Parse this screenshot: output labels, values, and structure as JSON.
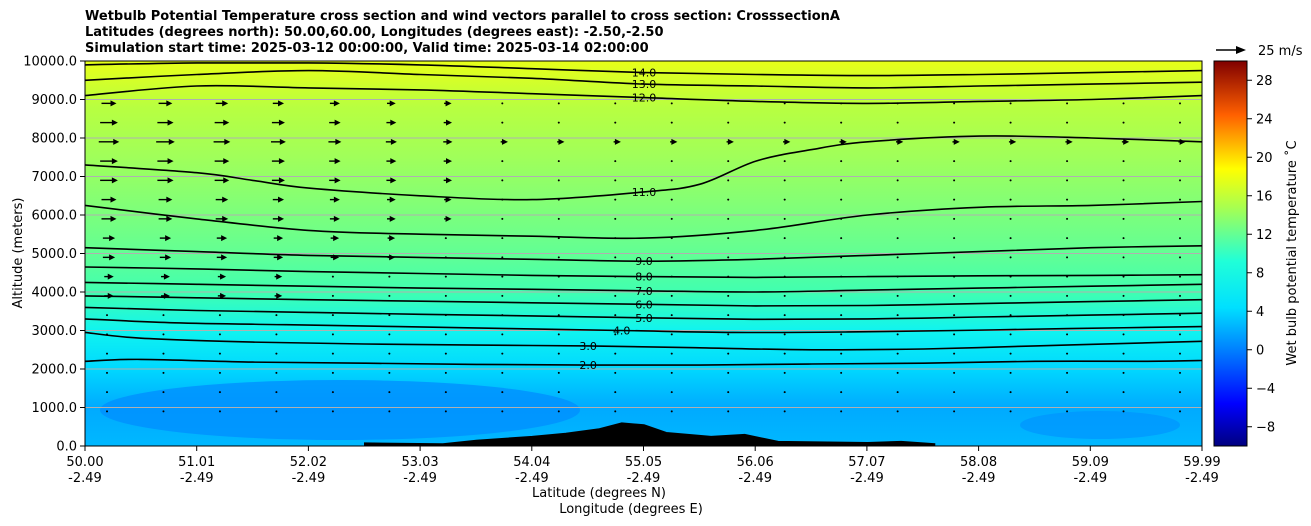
{
  "chart_data": {
    "type": "heatmap",
    "title_lines": [
      "Wetbulb Potential Temperature cross section and wind vectors parallel to cross section: CrosssectionA",
      "Latitudes (degrees north): 50.00,60.00, Longitudes (degrees east): -2.50,-2.50",
      "Simulation start time: 2025-03-12 00:00:00, Valid time: 2025-03-14 02:00:00"
    ],
    "ylabel": "Altitude (meters)",
    "xlabel_lat": "Latitude (degrees N)",
    "xlabel_lon": "Longitude (degrees E)",
    "ylim": [
      0,
      10000
    ],
    "xlim": [
      50.0,
      59.99
    ],
    "y_ticks": [
      "0.0",
      "1000.0",
      "2000.0",
      "3000.0",
      "4000.0",
      "5000.0",
      "6000.0",
      "7000.0",
      "8000.0",
      "9000.0",
      "10000.0"
    ],
    "x_ticks_lat": [
      "50.00",
      "51.01",
      "52.02",
      "53.03",
      "54.04",
      "55.05",
      "56.06",
      "57.07",
      "58.08",
      "59.09",
      "59.99"
    ],
    "x_ticks_lon": [
      "-2.49",
      "-2.49",
      "-2.49",
      "-2.49",
      "-2.49",
      "-2.49",
      "-2.49",
      "-2.49",
      "-2.49",
      "-2.49",
      "-2.49"
    ],
    "colorbar": {
      "label": "Wet bulb potential temperature ˚C",
      "range": [
        -10,
        30
      ],
      "ticks": [
        "−8",
        "−4",
        "0",
        "4",
        "8",
        "12",
        "16",
        "20",
        "24",
        "28"
      ]
    },
    "quiver_key_label": "25 m/s",
    "contours": [
      {
        "level": 2.0,
        "label": "2.0",
        "points": [
          [
            50.0,
            2200
          ],
          [
            50.5,
            2250
          ],
          [
            51.5,
            2180
          ],
          [
            52.5,
            2150
          ],
          [
            53.5,
            2120
          ],
          [
            54.5,
            2100
          ],
          [
            55.5,
            2100
          ],
          [
            56.5,
            2130
          ],
          [
            57.5,
            2150
          ],
          [
            58.5,
            2200
          ],
          [
            59.5,
            2200
          ],
          [
            59.99,
            2220
          ]
        ]
      },
      {
        "level": 3.0,
        "label": "3.0",
        "points": [
          [
            50.0,
            2950
          ],
          [
            50.5,
            2800
          ],
          [
            51.5,
            2700
          ],
          [
            52.5,
            2650
          ],
          [
            53.5,
            2620
          ],
          [
            54.5,
            2600
          ],
          [
            55.5,
            2550
          ],
          [
            56.5,
            2500
          ],
          [
            57.5,
            2520
          ],
          [
            58.5,
            2600
          ],
          [
            59.5,
            2680
          ],
          [
            59.99,
            2720
          ]
        ]
      },
      {
        "level": 4.0,
        "label": "4.0",
        "points": [
          [
            50.0,
            3300
          ],
          [
            50.8,
            3200
          ],
          [
            51.8,
            3150
          ],
          [
            52.8,
            3100
          ],
          [
            53.8,
            3050
          ],
          [
            54.8,
            3000
          ],
          [
            55.8,
            2950
          ],
          [
            56.8,
            2960
          ],
          [
            57.8,
            3000
          ],
          [
            58.8,
            3050
          ],
          [
            59.99,
            3100
          ]
        ]
      },
      {
        "level": 5.0,
        "label": "5.0",
        "points": [
          [
            50.0,
            3600
          ],
          [
            51.0,
            3520
          ],
          [
            52.0,
            3470
          ],
          [
            53.0,
            3420
          ],
          [
            54.0,
            3380
          ],
          [
            55.0,
            3330
          ],
          [
            56.0,
            3290
          ],
          [
            57.0,
            3300
          ],
          [
            58.0,
            3350
          ],
          [
            59.0,
            3400
          ],
          [
            59.99,
            3450
          ]
        ]
      },
      {
        "level": 6.0,
        "label": "6.0",
        "points": [
          [
            50.0,
            3900
          ],
          [
            51.0,
            3850
          ],
          [
            52.0,
            3800
          ],
          [
            53.0,
            3760
          ],
          [
            54.0,
            3720
          ],
          [
            55.0,
            3680
          ],
          [
            56.0,
            3640
          ],
          [
            57.0,
            3650
          ],
          [
            58.0,
            3700
          ],
          [
            59.0,
            3750
          ],
          [
            59.99,
            3800
          ]
        ]
      },
      {
        "level": 7.0,
        "label": "7.0",
        "points": [
          [
            50.0,
            4250
          ],
          [
            51.0,
            4200
          ],
          [
            52.0,
            4150
          ],
          [
            53.0,
            4100
          ],
          [
            54.0,
            4070
          ],
          [
            55.0,
            4030
          ],
          [
            56.0,
            4000
          ],
          [
            57.0,
            4050
          ],
          [
            58.0,
            4100
          ],
          [
            59.0,
            4150
          ],
          [
            59.99,
            4200
          ]
        ]
      },
      {
        "level": 8.0,
        "label": "8.0",
        "points": [
          [
            50.0,
            4650
          ],
          [
            51.0,
            4600
          ],
          [
            52.0,
            4530
          ],
          [
            53.0,
            4480
          ],
          [
            54.0,
            4430
          ],
          [
            55.0,
            4400
          ],
          [
            56.0,
            4380
          ],
          [
            57.0,
            4400
          ],
          [
            58.0,
            4420
          ],
          [
            59.0,
            4430
          ],
          [
            59.99,
            4450
          ]
        ]
      },
      {
        "level": 9.0,
        "label": "9.0",
        "points": [
          [
            50.0,
            5150
          ],
          [
            51.0,
            5050
          ],
          [
            52.0,
            4950
          ],
          [
            53.0,
            4900
          ],
          [
            54.0,
            4850
          ],
          [
            55.0,
            4800
          ],
          [
            56.0,
            4850
          ],
          [
            57.0,
            4950
          ],
          [
            58.0,
            5050
          ],
          [
            59.0,
            5150
          ],
          [
            59.99,
            5200
          ]
        ]
      },
      {
        "level": 10.0,
        "label": "",
        "points": [
          [
            50.0,
            6250
          ],
          [
            51.0,
            5900
          ],
          [
            52.0,
            5600
          ],
          [
            53.0,
            5500
          ],
          [
            54.0,
            5450
          ],
          [
            55.0,
            5400
          ],
          [
            56.0,
            5600
          ],
          [
            57.0,
            6000
          ],
          [
            58.0,
            6200
          ],
          [
            59.0,
            6250
          ],
          [
            59.99,
            6350
          ]
        ]
      },
      {
        "level": 11.0,
        "label": "11.0",
        "points": [
          [
            50.0,
            7300
          ],
          [
            51.0,
            7100
          ],
          [
            51.5,
            6900
          ],
          [
            52.0,
            6700
          ],
          [
            53.0,
            6500
          ],
          [
            54.0,
            6400
          ],
          [
            55.0,
            6600
          ],
          [
            55.5,
            6800
          ],
          [
            56.0,
            7400
          ],
          [
            56.5,
            7700
          ],
          [
            57.0,
            7900
          ],
          [
            58.0,
            8050
          ],
          [
            59.0,
            8000
          ],
          [
            59.99,
            7900
          ]
        ]
      },
      {
        "level": 12.0,
        "label": "12.0",
        "points": [
          [
            50.0,
            9100
          ],
          [
            51.0,
            9350
          ],
          [
            52.0,
            9300
          ],
          [
            53.0,
            9250
          ],
          [
            54.0,
            9150
          ],
          [
            55.0,
            9050
          ],
          [
            56.0,
            8950
          ],
          [
            57.0,
            8900
          ],
          [
            58.0,
            8950
          ],
          [
            59.0,
            9000
          ],
          [
            59.99,
            9100
          ]
        ]
      },
      {
        "level": 13.0,
        "label": "13.0",
        "points": [
          [
            50.0,
            9500
          ],
          [
            51.0,
            9650
          ],
          [
            52.0,
            9750
          ],
          [
            53.0,
            9650
          ],
          [
            54.0,
            9550
          ],
          [
            55.0,
            9400
          ],
          [
            56.0,
            9350
          ],
          [
            57.0,
            9300
          ],
          [
            58.0,
            9350
          ],
          [
            59.0,
            9400
          ],
          [
            59.99,
            9450
          ]
        ]
      },
      {
        "level": 14.0,
        "label": "14.0",
        "points": [
          [
            50.0,
            9900
          ],
          [
            51.0,
            9950
          ],
          [
            52.0,
            9950
          ],
          [
            53.0,
            9900
          ],
          [
            54.0,
            9800
          ],
          [
            55.0,
            9700
          ],
          [
            56.0,
            9650
          ],
          [
            57.0,
            9620
          ],
          [
            58.0,
            9650
          ],
          [
            59.0,
            9700
          ],
          [
            59.99,
            9750
          ]
        ]
      }
    ],
    "terrain_peaks": [
      [
        52.5,
        80
      ],
      [
        53.2,
        60
      ],
      [
        53.5,
        150
      ],
      [
        54.0,
        250
      ],
      [
        54.3,
        330
      ],
      [
        54.6,
        450
      ],
      [
        54.8,
        600
      ],
      [
        55.0,
        550
      ],
      [
        55.2,
        350
      ],
      [
        55.6,
        250
      ],
      [
        55.9,
        300
      ],
      [
        56.2,
        120
      ],
      [
        57.0,
        90
      ],
      [
        57.3,
        120
      ],
      [
        57.6,
        60
      ]
    ],
    "wind_rows": [
      {
        "alt": 8900,
        "u": 4
      },
      {
        "alt": 8400,
        "u": 5
      },
      {
        "alt": 7900,
        "u": 6
      },
      {
        "alt": 7400,
        "u": 5
      },
      {
        "alt": 6900,
        "u": 5
      },
      {
        "alt": 6400,
        "u": 4
      },
      {
        "alt": 5900,
        "u": 4
      },
      {
        "alt": 5400,
        "u": 3
      },
      {
        "alt": 4900,
        "u": 3
      },
      {
        "alt": 4400,
        "u": 2
      },
      {
        "alt": 3900,
        "u": 2
      },
      {
        "alt": 3400,
        "u": 1
      },
      {
        "alt": 2900,
        "u": 1
      },
      {
        "alt": 2400,
        "u": 1
      },
      {
        "alt": 1900,
        "u": 1
      },
      {
        "alt": 1400,
        "u": 1
      },
      {
        "alt": 900,
        "u": 1
      }
    ]
  }
}
